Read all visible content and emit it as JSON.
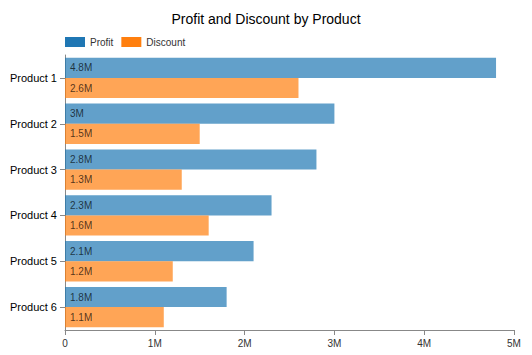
{
  "chart_data": {
    "type": "bar",
    "title": "Profit and Discount by Product",
    "orientation": "horizontal",
    "categories": [
      "Product 1",
      "Product 2",
      "Product 3",
      "Product 4",
      "Product 5",
      "Product 6"
    ],
    "series": [
      {
        "name": "Profit",
        "color": "#1f77b4",
        "values": [
          4800000,
          3000000,
          2800000,
          2300000,
          2100000,
          1800000
        ],
        "value_labels": [
          "4.8M",
          "3M",
          "2.8M",
          "2.3M",
          "2.1M",
          "1.8M"
        ]
      },
      {
        "name": "Discount",
        "color": "#ff7f0e",
        "values": [
          2600000,
          1500000,
          1300000,
          1600000,
          1200000,
          1100000
        ],
        "value_labels": [
          "2.6M",
          "1.5M",
          "1.3M",
          "1.6M",
          "1.2M",
          "1.1M"
        ]
      }
    ],
    "xlim": [
      0,
      5000000
    ],
    "xticks": [
      0,
      {
        "value": 1000000,
        "label": "1M"
      },
      {
        "value": 2000000,
        "label": "2M"
      },
      {
        "value": 3000000,
        "label": "3M"
      },
      {
        "value": 4000000,
        "label": "4M"
      },
      {
        "value": 5000000,
        "label": "5M"
      }
    ],
    "grid": false,
    "legend": "top-left",
    "data_labels": true
  }
}
